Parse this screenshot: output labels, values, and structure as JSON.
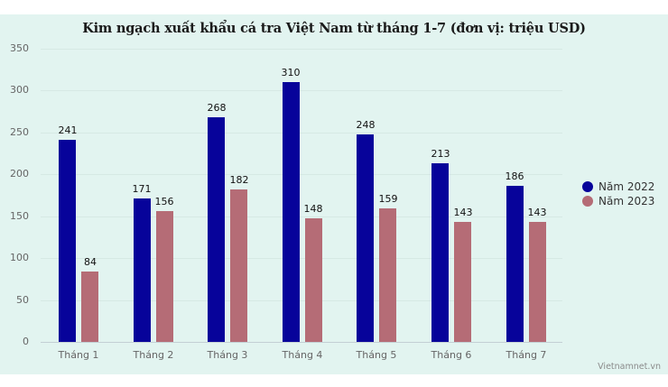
{
  "chart_data": {
    "type": "bar",
    "title": "Kim ngạch xuất khẩu cá tra Việt Nam từ tháng 1-7 (đơn vị: triệu USD)",
    "xlabel": "",
    "ylabel": "",
    "categories": [
      "Tháng 1",
      "Tháng 2",
      "Tháng 3",
      "Tháng 4",
      "Tháng 5",
      "Tháng 6",
      "Tháng 7"
    ],
    "series": [
      {
        "name": "Năm 2022",
        "color": "#07039a",
        "values": [
          241,
          171,
          268,
          310,
          248,
          213,
          186
        ]
      },
      {
        "name": "Năm 2023",
        "color": "#b56c76",
        "values": [
          84,
          156,
          182,
          148,
          159,
          143,
          143
        ]
      }
    ],
    "ylim": [
      0,
      350
    ],
    "yticks": [
      0,
      50,
      100,
      150,
      200,
      250,
      300,
      350
    ],
    "grid": true,
    "legend_position": "right",
    "data_labels": true
  },
  "title": "Kim ngạch xuất khẩu cá tra Việt Nam từ tháng 1-7 (đơn vị: triệu USD)",
  "yticks": [
    "0",
    "50",
    "100",
    "150",
    "200",
    "250",
    "300",
    "350"
  ],
  "categories": [
    "Tháng 1",
    "Tháng 2",
    "Tháng 3",
    "Tháng 4",
    "Tháng 5",
    "Tháng 6",
    "Tháng 7"
  ],
  "legend": [
    {
      "label": "Năm 2022",
      "color": "#07039a"
    },
    {
      "label": "Năm 2023",
      "color": "#b56c76"
    }
  ],
  "source": "Vietnamnet.vn",
  "colors": {
    "background": "#e2f4f0",
    "series_2022": "#07039a",
    "series_2023": "#b56c76"
  }
}
